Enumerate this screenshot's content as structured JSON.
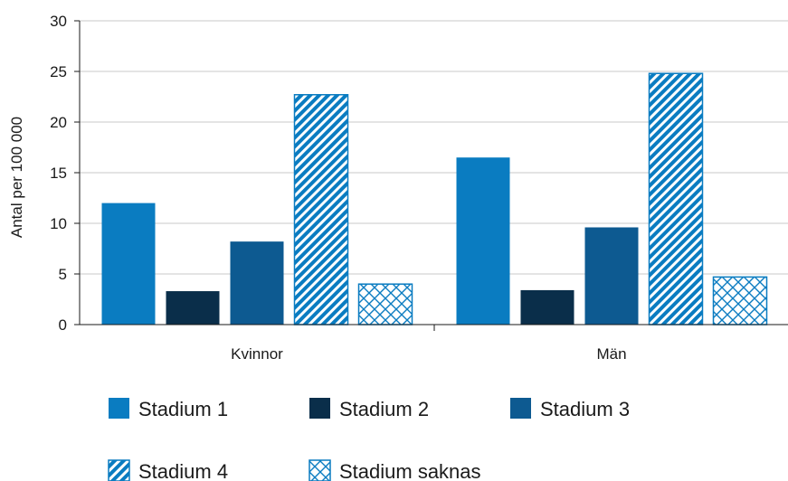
{
  "chart_data": {
    "type": "bar",
    "categories": [
      "Kvinnor",
      "Män"
    ],
    "series": [
      {
        "name": "Stadium 1",
        "values": [
          12.0,
          16.5
        ],
        "color": "#0a7cc1",
        "pattern": "solid"
      },
      {
        "name": "Stadium 2",
        "values": [
          3.3,
          3.4
        ],
        "color": "#0a2e4a",
        "pattern": "solid"
      },
      {
        "name": "Stadium 3",
        "values": [
          8.2,
          9.6
        ],
        "color": "#0d5a91",
        "pattern": "solid"
      },
      {
        "name": "Stadium 4",
        "values": [
          22.7,
          24.8
        ],
        "color": "#0a7cc1",
        "pattern": "diagonal-stripes"
      },
      {
        "name": "Stadium saknas",
        "values": [
          4.0,
          4.7
        ],
        "color": "#0a7cc1",
        "pattern": "crosshatch"
      }
    ],
    "ylabel": "Antal per 100 000",
    "xlabel": "",
    "ylim": [
      0,
      30
    ],
    "yticks": [
      0,
      5,
      10,
      15,
      20,
      25,
      30
    ],
    "grid": true,
    "legend_placement": "bottom"
  }
}
